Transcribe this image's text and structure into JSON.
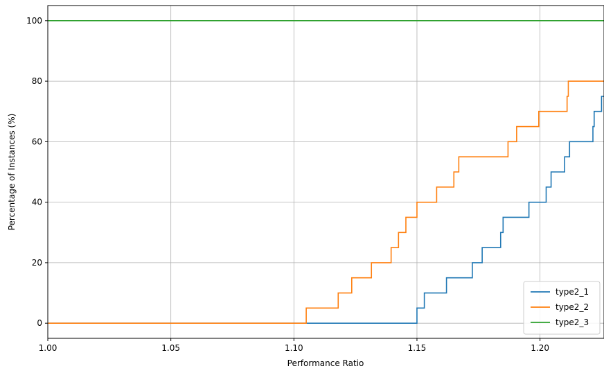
{
  "chart_data": {
    "type": "line",
    "xlabel": "Performance Ratio",
    "ylabel": "Percentage of Instances (%)",
    "xlim": [
      1.0,
      1.226
    ],
    "ylim": [
      -5,
      105
    ],
    "xticks": [
      1.0,
      1.05,
      1.1,
      1.15,
      1.2
    ],
    "xtick_labels": [
      "1.00",
      "1.05",
      "1.10",
      "1.15",
      "1.20"
    ],
    "yticks": [
      0,
      20,
      40,
      60,
      80,
      100
    ],
    "ytick_labels": [
      "0",
      "20",
      "40",
      "60",
      "80",
      "100"
    ],
    "grid": true,
    "legend_position": "lower-right",
    "step": "post",
    "series": [
      {
        "name": "type2_1",
        "color": "#1f77b4",
        "x": [
          1.0,
          1.15,
          1.153,
          1.162,
          1.1725,
          1.1765,
          1.184,
          1.185,
          1.1955,
          1.2025,
          1.2045,
          1.21,
          1.212,
          1.2215,
          1.222,
          1.225,
          1.226
        ],
        "y": [
          0,
          5,
          10,
          15,
          20,
          25,
          30,
          35,
          40,
          45,
          50,
          55,
          60,
          65,
          70,
          75,
          75
        ]
      },
      {
        "name": "type2_2",
        "color": "#ff7f0e",
        "x": [
          1.0,
          1.105,
          1.118,
          1.1235,
          1.1315,
          1.1395,
          1.1425,
          1.1455,
          1.15,
          1.158,
          1.165,
          1.167,
          1.187,
          1.189,
          1.1905,
          1.1995,
          1.211,
          1.2115,
          1.226
        ],
        "y": [
          0,
          5,
          10,
          15,
          20,
          25,
          30,
          35,
          40,
          45,
          50,
          55,
          60,
          60,
          65,
          70,
          75,
          80,
          80
        ]
      },
      {
        "name": "type2_3",
        "color": "#2ca02c",
        "x": [
          1.0,
          1.226
        ],
        "y": [
          100,
          100
        ]
      }
    ]
  }
}
